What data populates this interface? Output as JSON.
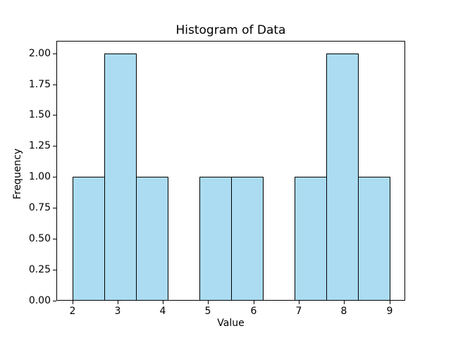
{
  "chart_data": {
    "type": "bar",
    "subtype": "histogram",
    "title": "Histogram of Data",
    "xlabel": "Value",
    "ylabel": "Frequency",
    "bin_edges": [
      2.0,
      2.7,
      3.4,
      4.1,
      4.8,
      5.5,
      6.2,
      6.9,
      7.6,
      8.3,
      9.0
    ],
    "counts": [
      1,
      2,
      1,
      0,
      1,
      1,
      0,
      1,
      2,
      1
    ],
    "xlim": [
      1.65,
      9.35
    ],
    "ylim": [
      0,
      2.1
    ],
    "x_ticks": [
      2,
      3,
      4,
      5,
      6,
      7,
      8,
      9
    ],
    "x_tick_labels": [
      "2",
      "3",
      "4",
      "5",
      "6",
      "7",
      "8",
      "9"
    ],
    "y_ticks": [
      0.0,
      0.25,
      0.5,
      0.75,
      1.0,
      1.25,
      1.5,
      1.75,
      2.0
    ],
    "y_tick_labels": [
      "0.00",
      "0.25",
      "0.50",
      "0.75",
      "1.00",
      "1.25",
      "1.50",
      "1.75",
      "2.00"
    ],
    "bar_color": "#abdcf1",
    "bar_edge_color": "#000000",
    "grid": false,
    "legend": null,
    "background_color": "#ffffff",
    "text_color": "#000000"
  }
}
